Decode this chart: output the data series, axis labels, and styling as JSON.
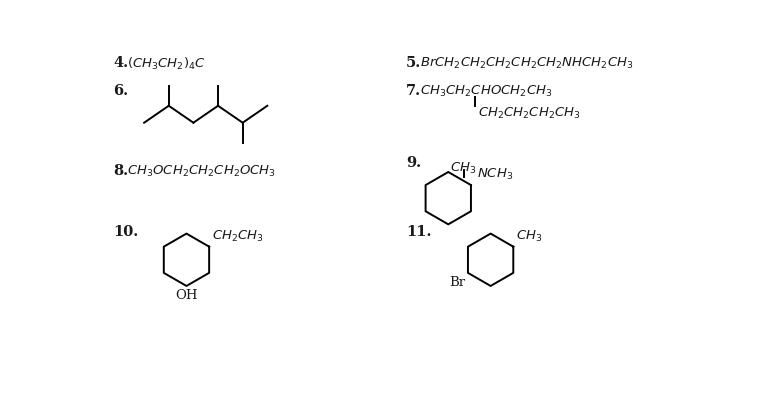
{
  "bg_color": "#ffffff",
  "text_color": "#1a1a1a",
  "lw": 1.4,
  "fs": 9.5,
  "fs_num": 10.5
}
